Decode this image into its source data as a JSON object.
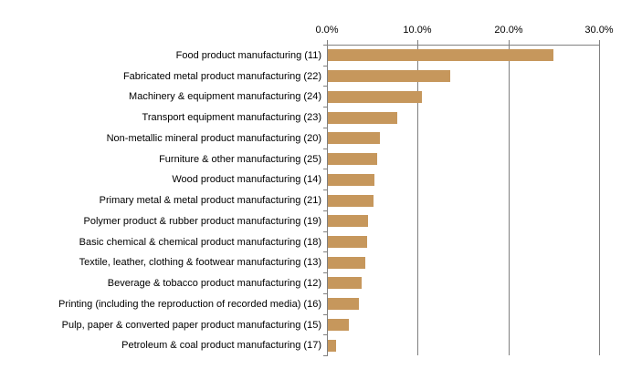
{
  "chart_data": {
    "type": "bar",
    "orientation": "horizontal",
    "title": "",
    "xlabel": "",
    "ylabel": "",
    "categories": [
      "Food product manufacturing (11)",
      "Fabricated metal product manufacturing (22)",
      "Machinery & equipment manufacturing (24)",
      "Transport equipment manufacturing (23)",
      "Non-metallic mineral product manufacturing (20)",
      "Furniture & other manufacturing (25)",
      "Wood product manufacturing (14)",
      "Primary metal & metal product manufacturing (21)",
      "Polymer product & rubber product manufacturing (19)",
      "Basic chemical & chemical product manufacturing (18)",
      "Textile, leather, clothing & footwear manufacturing (13)",
      "Beverage & tobacco product manufacturing (12)",
      "Printing (including the reproduction of recorded media) (16)",
      "Pulp, paper & converted paper product manufacturing (15)",
      "Petroleum & coal product manufacturing (17)"
    ],
    "values": [
      24.9,
      13.5,
      10.4,
      7.7,
      5.7,
      5.4,
      5.1,
      5.0,
      4.4,
      4.3,
      4.1,
      3.7,
      3.4,
      2.3,
      0.9
    ],
    "value_unit": "%",
    "xlim": [
      0,
      30
    ],
    "x_tick_values": [
      0,
      10,
      20,
      30
    ],
    "x_tick_labels": [
      "0.0%",
      "10.0%",
      "20.0%",
      "30.0%"
    ],
    "x_axis_position": "top",
    "grid": true,
    "legend": false,
    "colors": {
      "bar": "#C6975C",
      "axis": "#808080",
      "gridline": "#808080",
      "text": "#000000",
      "background": "#FFFFFF"
    }
  }
}
